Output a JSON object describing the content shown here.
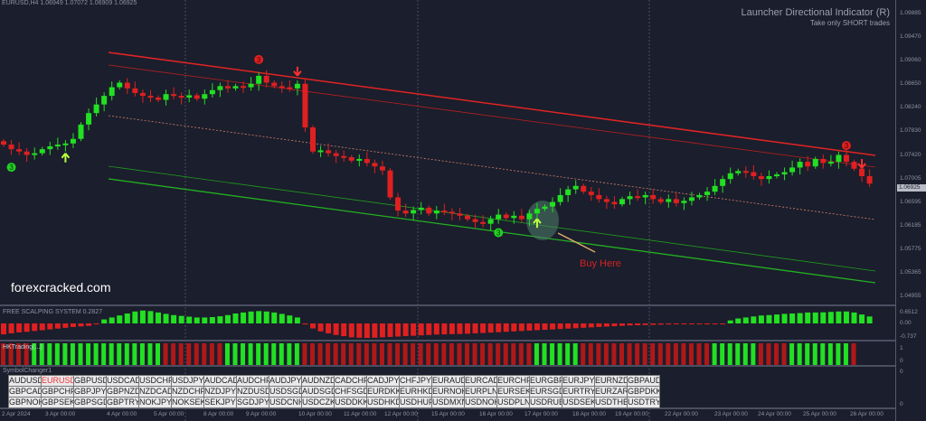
{
  "header": {
    "symbol": "EURUSD,H4",
    "ohlc": "1.06949 1.07072 1.06909 1.06925"
  },
  "indicator_title": "Launcher Directional Indicator (R)",
  "indicator_subtitle": "Take only SHORT trades",
  "watermark": "forexcracked.com",
  "annotation": "Buy Here",
  "panels": {
    "scalping": {
      "label": "FREE SCALPING SYSTEM 0.2827",
      "ticks": [
        "0.6512",
        "0.00",
        "-0.737"
      ]
    },
    "hk": {
      "label": "HKTrading(...)",
      "ticks": [
        "1",
        "0"
      ]
    },
    "symbol_changer": {
      "label": "SymbolChanger1",
      "ticks": [
        "0",
        "0"
      ]
    }
  },
  "price_axis": [
    "1.09885",
    "1.09470",
    "1.09060",
    "1.08650",
    "1.08240",
    "1.07830",
    "1.07420",
    "1.07005",
    "1.06595",
    "1.06185",
    "1.05775",
    "1.05365",
    "1.04955"
  ],
  "current_price": "1.06925",
  "time_axis": [
    "2 Apr 2024",
    "3 Apr 00:00",
    "4 Apr 00:00",
    "5 Apr 00:00",
    "8 Apr 00:00",
    "9 Apr 00:00",
    "10 Apr 00:00",
    "11 Apr 00:00",
    "12 Apr 00:00",
    "15 Apr 00:00",
    "16 Apr 00:00",
    "17 Apr 00:00",
    "18 Apr 00:00",
    "19 Apr 00:00",
    "22 Apr 00:00",
    "23 Apr 00:00",
    "24 Apr 00:00",
    "25 Apr 00:00",
    "26 Apr 00:00"
  ],
  "symbols": [
    "AUDUSD",
    "EURUSD",
    "GBPUSD",
    "USDCAD",
    "USDCHF",
    "USDJPY",
    "AUDCAD",
    "AUDCHF",
    "AUDJPY",
    "AUDNZD",
    "CADCHF",
    "CADJPY",
    "CHFJPY",
    "EURAUD",
    "EURCAD",
    "EURCHF",
    "EURGBP",
    "EURJPY",
    "EURNZD",
    "GBPAUD",
    "GBPCAD",
    "GBPCHF",
    "GBPJPY",
    "GBPNZD",
    "NZDCAD",
    "NZDCHF",
    "NZDJPY",
    "NZDUSD",
    "USDSGD",
    "AUDSGD",
    "CHFSGD",
    "EURDKK",
    "EURHKD",
    "EURNOK",
    "EURPLN",
    "EURSEK",
    "EURSGD",
    "EURTRY",
    "EURZAR",
    "GBPDKK",
    "GBPNOK",
    "GBPSEK",
    "GBPSGD",
    "GBPTRY",
    "NOKJPY",
    "NOKSEK",
    "SEKJPY",
    "SGDJPY",
    "USDCNH",
    "USDCZK",
    "USDDKK",
    "USDHKD",
    "USDHUF",
    "USDMXN",
    "USDNOK",
    "USDPLN",
    "USDRUB",
    "USDSEK",
    "USDTHB",
    "USDTRY"
  ],
  "active_symbol": "EURUSD",
  "colors": {
    "bull": "#22e022",
    "bear": "#e02020",
    "bg": "#1b1e2c",
    "hk_bear": "#b01818"
  },
  "chart_data": {
    "type": "candlestick",
    "title": "EURUSD,H4",
    "ylim": [
      1.04955,
      1.09885
    ],
    "closes": [
      1.076,
      1.0752,
      1.0748,
      1.0742,
      1.0745,
      1.0752,
      1.0757,
      1.076,
      1.0762,
      1.077,
      1.0795,
      1.0815,
      1.083,
      1.0845,
      1.086,
      1.0868,
      1.0858,
      1.085,
      1.0845,
      1.0842,
      1.0838,
      1.0848,
      1.0845,
      1.0842,
      1.0846,
      1.084,
      1.0848,
      1.0855,
      1.0862,
      1.0858,
      1.0862,
      1.086,
      1.0866,
      1.088,
      1.0868,
      1.0862,
      1.086,
      1.0858,
      1.0866,
      1.079,
      1.0748,
      1.075,
      1.0745,
      1.074,
      1.0738,
      1.0732,
      1.0735,
      1.0728,
      1.0722,
      1.0715,
      1.0668,
      1.0645,
      1.064,
      1.0646,
      1.065,
      1.064,
      1.0645,
      1.0643,
      1.064,
      1.0636,
      1.063,
      1.0625,
      1.0622,
      1.063,
      1.0638,
      1.0632,
      1.0636,
      1.063,
      1.064,
      1.0648,
      1.0652,
      1.066,
      1.0672,
      1.0682,
      1.0688,
      1.0678,
      1.0672,
      1.0665,
      1.066,
      1.0656,
      1.0665,
      1.067,
      1.0668,
      1.0672,
      1.0665,
      1.066,
      1.0665,
      1.0658,
      1.0662,
      1.0668,
      1.0672,
      1.0678,
      1.0688,
      1.07,
      1.071,
      1.0714,
      1.0712,
      1.0705,
      1.07,
      1.0705,
      1.0708,
      1.0712,
      1.072,
      1.073,
      1.0722,
      1.0735,
      1.0728,
      1.073,
      1.0742,
      1.073,
      1.0718,
      1.0705,
      1.0692
    ],
    "scalping_hist": [
      -0.55,
      -0.5,
      -0.45,
      -0.42,
      -0.38,
      -0.34,
      -0.3,
      -0.26,
      -0.22,
      -0.18,
      -0.15,
      -0.12,
      -0.02,
      0.2,
      0.3,
      0.4,
      0.5,
      0.6,
      0.65,
      0.62,
      0.55,
      0.48,
      0.42,
      0.38,
      0.34,
      0.3,
      0.3,
      0.32,
      0.36,
      0.42,
      0.5,
      0.55,
      0.6,
      0.62,
      0.6,
      0.55,
      0.48,
      0.4,
      0.3,
      -0.05,
      -0.25,
      -0.4,
      -0.5,
      -0.58,
      -0.64,
      -0.7,
      -0.72,
      -0.73,
      -0.72,
      -0.7,
      -0.68,
      -0.66,
      -0.64,
      -0.62,
      -0.6,
      -0.58,
      -0.56,
      -0.55,
      -0.54,
      -0.53,
      -0.52,
      -0.5,
      -0.48,
      -0.46,
      -0.44,
      -0.42,
      -0.4,
      -0.38,
      -0.36,
      -0.34,
      -0.32,
      -0.3,
      -0.28,
      -0.26,
      -0.24,
      -0.22,
      -0.2,
      -0.18,
      -0.16,
      -0.14,
      -0.12,
      -0.1,
      -0.09,
      -0.08,
      -0.07,
      -0.06,
      -0.05,
      -0.04,
      -0.03,
      -0.03,
      -0.02,
      -0.02,
      -0.02,
      -0.02,
      0.15,
      0.25,
      0.3,
      0.35,
      0.4,
      0.42,
      0.45,
      0.48,
      0.5,
      0.52,
      0.55,
      0.55,
      0.56,
      0.58,
      0.6,
      0.6,
      0.55,
      0.45,
      0.35
    ],
    "hk_signal": "RRRRGGGGGGGGGGGGGGGGGRRRRRRRRGGGGGGGGGGRRRRRRRRRRRRRRRRRRRRRRRRRRRRRRGGGGGGRRRRRRRRRRRRRRRRRGGGGGGRRRRGGGGGGGGR",
    "signals": [
      {
        "type": "buy-circle",
        "index": 1,
        "label": "3"
      },
      {
        "type": "buy-arrow",
        "index": 8
      },
      {
        "type": "sell-circle",
        "index": 33,
        "label": "3"
      },
      {
        "type": "sell-arrow",
        "index": 38
      },
      {
        "type": "buy-circle",
        "index": 64,
        "label": "3"
      },
      {
        "type": "buy-arrow",
        "index": 69
      },
      {
        "type": "sell-circle",
        "index": 109,
        "label": "3"
      },
      {
        "type": "sell-arrow",
        "index": 111
      }
    ]
  }
}
